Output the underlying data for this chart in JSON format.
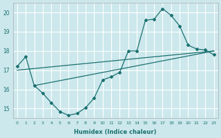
{
  "xlabel": "Humidex (Indice chaleur)",
  "xlim": [
    -0.5,
    23.5
  ],
  "ylim": [
    14.5,
    20.5
  ],
  "yticks": [
    15,
    16,
    17,
    18,
    19,
    20
  ],
  "xticks": [
    0,
    1,
    2,
    3,
    4,
    5,
    6,
    7,
    8,
    9,
    10,
    11,
    12,
    13,
    14,
    15,
    16,
    17,
    18,
    19,
    20,
    21,
    22,
    23
  ],
  "bg_color": "#cce8ec",
  "line_color": "#1a7070",
  "grid_color": "#ffffff",
  "line1_x": [
    0,
    1,
    2,
    3,
    4,
    5,
    6,
    7,
    8,
    9,
    10,
    11,
    12,
    13,
    14,
    15,
    16,
    17,
    18,
    19,
    20,
    21,
    22,
    23
  ],
  "line1_y": [
    17.2,
    17.7,
    16.2,
    15.8,
    15.3,
    14.85,
    14.65,
    14.75,
    15.05,
    15.55,
    16.5,
    16.65,
    16.9,
    18.0,
    18.0,
    19.6,
    19.65,
    20.2,
    19.85,
    19.3,
    18.3,
    18.1,
    18.05,
    17.8
  ],
  "line2_x": [
    2,
    23
  ],
  "line2_y": [
    16.2,
    18.0
  ],
  "line3_x": [
    0,
    23
  ],
  "line3_y": [
    17.0,
    18.0
  ]
}
